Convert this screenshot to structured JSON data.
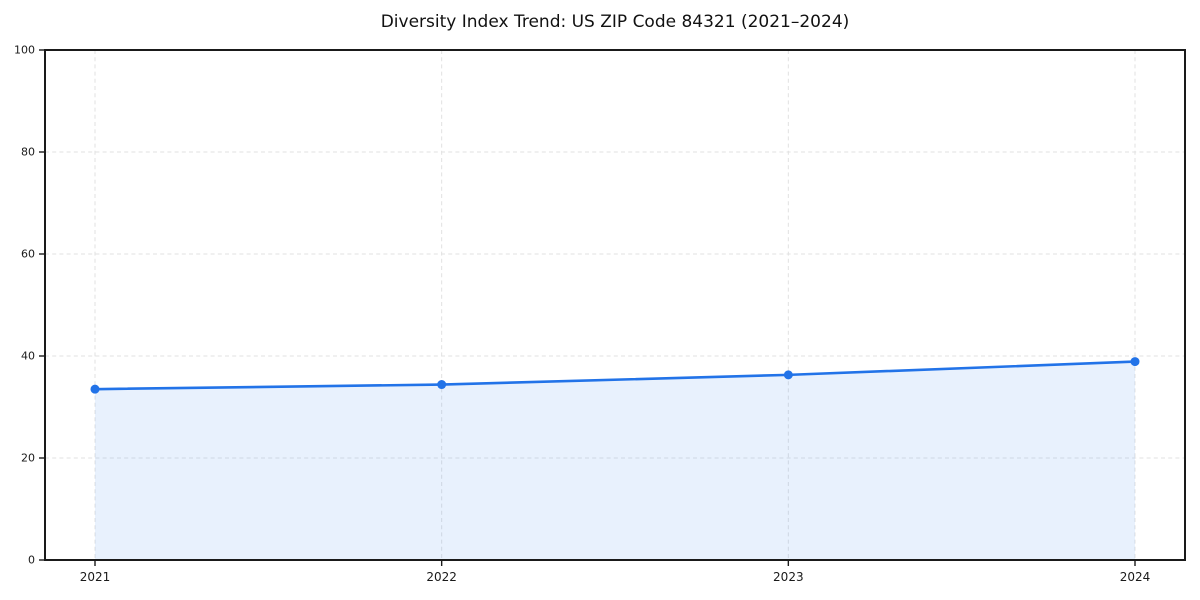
{
  "figure": {
    "background": "#ffffff",
    "border_color": "#1a1a1a",
    "grid_color": "#e2e2e2",
    "tick_label_color": "#1a1a1a"
  },
  "chart_data": {
    "type": "area",
    "title": "Diversity Index Trend: US ZIP Code 84321 (2021–2024)",
    "x": [
      "2021",
      "2022",
      "2023",
      "2024"
    ],
    "series": [
      {
        "name": "Diversity Index",
        "values": [
          33.5,
          34.4,
          36.3,
          38.9
        ]
      }
    ],
    "xlabel": "",
    "ylabel": "",
    "ylim": [
      0,
      100
    ],
    "yticks": [
      0,
      20,
      40,
      60,
      80,
      100
    ],
    "grid": "dashed both directions",
    "legend": "none",
    "line_color": "#2273e8",
    "marker": "circle",
    "fill_opacity": 0.1
  }
}
